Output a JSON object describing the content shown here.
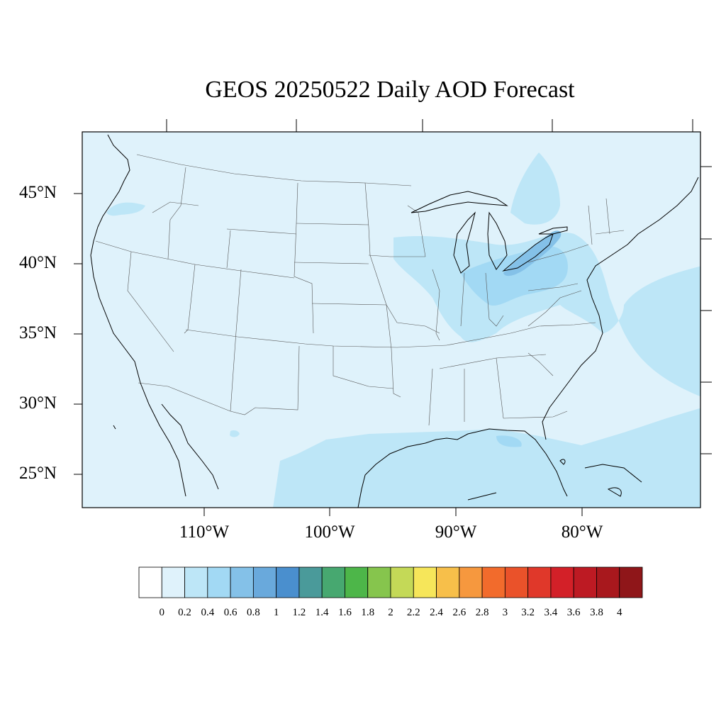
{
  "title": "GEOS 20250522 Daily AOD Forecast",
  "map": {
    "region": "Continental United States",
    "variable": "Aerosol Optical Depth",
    "lat_labels": [
      "45°N",
      "40°N",
      "35°N",
      "30°N",
      "25°N"
    ],
    "lon_labels": [
      "110°W",
      "100°W",
      "90°W",
      "80°W"
    ]
  },
  "colorbar": {
    "labels": [
      "0",
      "0.2",
      "0.4",
      "0.6",
      "0.8",
      "1",
      "1.2",
      "1.4",
      "1.6",
      "1.8",
      "2",
      "2.2",
      "2.4",
      "2.6",
      "2.8",
      "3",
      "3.2",
      "3.4",
      "3.6",
      "3.8",
      "4"
    ],
    "colors": [
      "#ffffff",
      "#dff2fb",
      "#bde6f7",
      "#a2d9f4",
      "#84c1e8",
      "#69a9dc",
      "#4a8fce",
      "#4a9a9a",
      "#47a870",
      "#4db649",
      "#86c54d",
      "#c4d957",
      "#f6e65a",
      "#f7bf4a",
      "#f6983e",
      "#f26b2c",
      "#ea522a",
      "#e0382a",
      "#d32028",
      "#bd1a23",
      "#a8181d",
      "#8f1619"
    ]
  }
}
